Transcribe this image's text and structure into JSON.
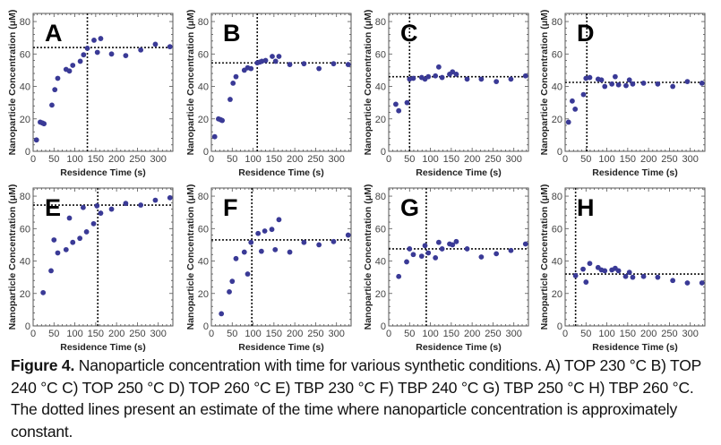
{
  "chart_data": [
    {
      "type": "scatter",
      "panel": "A",
      "condition": "TOP 230 °C",
      "xlabel": "Residence Time (s)",
      "ylabel": "Nanoparticle Concentration (μM)",
      "xlim": [
        0,
        335
      ],
      "ylim": [
        0,
        85
      ],
      "xticks": [
        0,
        50,
        100,
        150,
        200,
        250,
        300
      ],
      "yticks": [
        0,
        20,
        40,
        60,
        80
      ],
      "points": [
        [
          8,
          7
        ],
        [
          17,
          18
        ],
        [
          22,
          17.5
        ],
        [
          26,
          17
        ],
        [
          45,
          28.5
        ],
        [
          52,
          38
        ],
        [
          59,
          45
        ],
        [
          79,
          50.5
        ],
        [
          87,
          49.5
        ],
        [
          95,
          53
        ],
        [
          113,
          55.5
        ],
        [
          121,
          59.5
        ],
        [
          130,
          63.5
        ],
        [
          146,
          68.5
        ],
        [
          154,
          61
        ],
        [
          162,
          69.5
        ],
        [
          188,
          60
        ],
        [
          222,
          59
        ],
        [
          258,
          62.5
        ],
        [
          293,
          66
        ],
        [
          328,
          64.5
        ]
      ],
      "plateau_time": 130,
      "plateau_conc": 64
    },
    {
      "type": "scatter",
      "panel": "B",
      "condition": "TOP 240 °C",
      "xlabel": "Residence Time (s)",
      "ylabel": "Nanoparticle Concentration (μM)",
      "xlim": [
        0,
        335
      ],
      "ylim": [
        0,
        85
      ],
      "xticks": [
        0,
        50,
        100,
        150,
        200,
        250,
        300
      ],
      "yticks": [
        0,
        20,
        40,
        60,
        80
      ],
      "points": [
        [
          8,
          9
        ],
        [
          17,
          20
        ],
        [
          22,
          19.5
        ],
        [
          26,
          19
        ],
        [
          45,
          32
        ],
        [
          52,
          42
        ],
        [
          59,
          46
        ],
        [
          79,
          50
        ],
        [
          87,
          51.5
        ],
        [
          95,
          51
        ],
        [
          110,
          54.5
        ],
        [
          116,
          55
        ],
        [
          121,
          55.5
        ],
        [
          130,
          56
        ],
        [
          146,
          58.5
        ],
        [
          154,
          55.5
        ],
        [
          162,
          58.5
        ],
        [
          188,
          53.5
        ],
        [
          222,
          54
        ],
        [
          258,
          51
        ],
        [
          293,
          54
        ],
        [
          328,
          53.5
        ]
      ],
      "plateau_time": 110,
      "plateau_conc": 54.5
    },
    {
      "type": "scatter",
      "panel": "C",
      "condition": "TOP 250 °C",
      "xlabel": "Residence Time (s)",
      "ylabel": "Nanoparticle Concentration (μM)",
      "xlim": [
        0,
        335
      ],
      "ylim": [
        0,
        85
      ],
      "xticks": [
        0,
        50,
        100,
        150,
        200,
        250,
        300
      ],
      "yticks": [
        0,
        20,
        40,
        60,
        80
      ],
      "points": [
        [
          17,
          29
        ],
        [
          24,
          25
        ],
        [
          44,
          30
        ],
        [
          50,
          44.5
        ],
        [
          59,
          45
        ],
        [
          79,
          45.5
        ],
        [
          87,
          44.5
        ],
        [
          95,
          46
        ],
        [
          112,
          46.5
        ],
        [
          120,
          52
        ],
        [
          128,
          45.5
        ],
        [
          146,
          47.5
        ],
        [
          153,
          49
        ],
        [
          162,
          47.5
        ],
        [
          188,
          44.5
        ],
        [
          222,
          44.5
        ],
        [
          258,
          43
        ],
        [
          293,
          44.5
        ],
        [
          328,
          46.5
        ]
      ],
      "plateau_time": 50,
      "plateau_conc": 46
    },
    {
      "type": "scatter",
      "panel": "D",
      "condition": "TOP 260 °C",
      "xlabel": "Residence Time (s)",
      "ylabel": "Nanoparticle Concentration (μM)",
      "xlim": [
        0,
        335
      ],
      "ylim": [
        0,
        85
      ],
      "xticks": [
        0,
        50,
        100,
        150,
        200,
        250,
        300
      ],
      "yticks": [
        0,
        20,
        40,
        60,
        80
      ],
      "points": [
        [
          8,
          18
        ],
        [
          17,
          31
        ],
        [
          24,
          26
        ],
        [
          44,
          35
        ],
        [
          50,
          45
        ],
        [
          59,
          45.5
        ],
        [
          79,
          44.5
        ],
        [
          87,
          44
        ],
        [
          95,
          40
        ],
        [
          112,
          41.5
        ],
        [
          120,
          46
        ],
        [
          128,
          41
        ],
        [
          146,
          40.5
        ],
        [
          154,
          44
        ],
        [
          162,
          41.5
        ],
        [
          188,
          42
        ],
        [
          222,
          41.5
        ],
        [
          258,
          40
        ],
        [
          293,
          43
        ],
        [
          328,
          42
        ]
      ],
      "plateau_time": 52,
      "plateau_conc": 42.5
    },
    {
      "type": "scatter",
      "panel": "E",
      "condition": "TBP 230 °C",
      "xlabel": "Residence Time (s)",
      "ylabel": "Nanoparticle Concentration (μM)",
      "xlim": [
        0,
        335
      ],
      "ylim": [
        0,
        85
      ],
      "xticks": [
        0,
        50,
        100,
        150,
        200,
        250,
        300
      ],
      "yticks": [
        0,
        20,
        40,
        60,
        80
      ],
      "points": [
        [
          24,
          20.5
        ],
        [
          43,
          34
        ],
        [
          50,
          53
        ],
        [
          59,
          45
        ],
        [
          79,
          47
        ],
        [
          87,
          66.5
        ],
        [
          95,
          51.5
        ],
        [
          112,
          54
        ],
        [
          120,
          73
        ],
        [
          128,
          58
        ],
        [
          145,
          63
        ],
        [
          153,
          74
        ],
        [
          162,
          69.5
        ],
        [
          188,
          72
        ],
        [
          222,
          75.5
        ],
        [
          258,
          74.5
        ],
        [
          293,
          77.5
        ],
        [
          328,
          79
        ]
      ],
      "plateau_time": 155,
      "plateau_conc": 74.5
    },
    {
      "type": "scatter",
      "panel": "F",
      "condition": "TBP 240 °C",
      "xlabel": "Residence Time (s)",
      "ylabel": "Nanoparticle Concentration (μM)",
      "xlim": [
        0,
        335
      ],
      "ylim": [
        0,
        85
      ],
      "xticks": [
        0,
        50,
        100,
        150,
        200,
        250,
        300
      ],
      "yticks": [
        0,
        20,
        40,
        60,
        80
      ],
      "points": [
        [
          24,
          7.5
        ],
        [
          43,
          21
        ],
        [
          50,
          27.5
        ],
        [
          59,
          41.5
        ],
        [
          79,
          45.5
        ],
        [
          87,
          32
        ],
        [
          95,
          51.5
        ],
        [
          112,
          57
        ],
        [
          120,
          46
        ],
        [
          128,
          58.5
        ],
        [
          145,
          59.5
        ],
        [
          153,
          47
        ],
        [
          162,
          65.5
        ],
        [
          188,
          45.5
        ],
        [
          222,
          51.5
        ],
        [
          258,
          50
        ],
        [
          293,
          52
        ],
        [
          328,
          56
        ]
      ],
      "plateau_time": 97,
      "plateau_conc": 53
    },
    {
      "type": "scatter",
      "panel": "G",
      "condition": "TBP 250 °C",
      "xlabel": "Residence Time (s)",
      "ylabel": "Nanoparticle Concentration (μM)",
      "xlim": [
        0,
        335
      ],
      "ylim": [
        0,
        85
      ],
      "xticks": [
        0,
        50,
        100,
        150,
        200,
        250,
        300
      ],
      "yticks": [
        0,
        20,
        40,
        60,
        80
      ],
      "points": [
        [
          24,
          30.5
        ],
        [
          43,
          39.5
        ],
        [
          50,
          47.5
        ],
        [
          59,
          44
        ],
        [
          79,
          43
        ],
        [
          87,
          49.5
        ],
        [
          95,
          45
        ],
        [
          112,
          42
        ],
        [
          120,
          51.5
        ],
        [
          128,
          47.5
        ],
        [
          146,
          50.5
        ],
        [
          153,
          50
        ],
        [
          162,
          52
        ],
        [
          188,
          47.5
        ],
        [
          222,
          42.5
        ],
        [
          258,
          44.5
        ],
        [
          293,
          46.5
        ],
        [
          328,
          50.5
        ]
      ],
      "plateau_time": 90,
      "plateau_conc": 47.5
    },
    {
      "type": "scatter",
      "panel": "H",
      "condition": "TBP 260 °C",
      "xlabel": "Residence Time (s)",
      "ylabel": "Nanoparticle Concentration (μM)",
      "xlim": [
        0,
        335
      ],
      "ylim": [
        0,
        85
      ],
      "xticks": [
        0,
        50,
        100,
        150,
        200,
        250,
        300
      ],
      "yticks": [
        0,
        20,
        40,
        60,
        80
      ],
      "points": [
        [
          25,
          31
        ],
        [
          43,
          35
        ],
        [
          50,
          27
        ],
        [
          59,
          38.5
        ],
        [
          79,
          36
        ],
        [
          87,
          34.5
        ],
        [
          95,
          34
        ],
        [
          112,
          34.5
        ],
        [
          120,
          35.5
        ],
        [
          128,
          34
        ],
        [
          145,
          30.5
        ],
        [
          154,
          33
        ],
        [
          162,
          30
        ],
        [
          188,
          30.5
        ],
        [
          222,
          30
        ],
        [
          258,
          28
        ],
        [
          293,
          26.5
        ],
        [
          328,
          26.5
        ]
      ],
      "plateau_time": 25,
      "plateau_conc": 32
    }
  ],
  "caption": {
    "label": "Figure 4.",
    "text": " Nanoparticle concentration with time for various synthetic conditions. A) TOP 230 °C B) TOP 240 °C  C) TOP 250 °C  D) TOP 260 °C  E) TBP 230 °C  F) TBP 240 °C  G) TBP 250 °C H) TBP 260 °C. The dotted lines present an estimate of the time where nanoparticle concentration is approximately constant."
  },
  "colors": {
    "marker": "#3a3a96",
    "frame": "#555555",
    "guide": "#111111"
  }
}
